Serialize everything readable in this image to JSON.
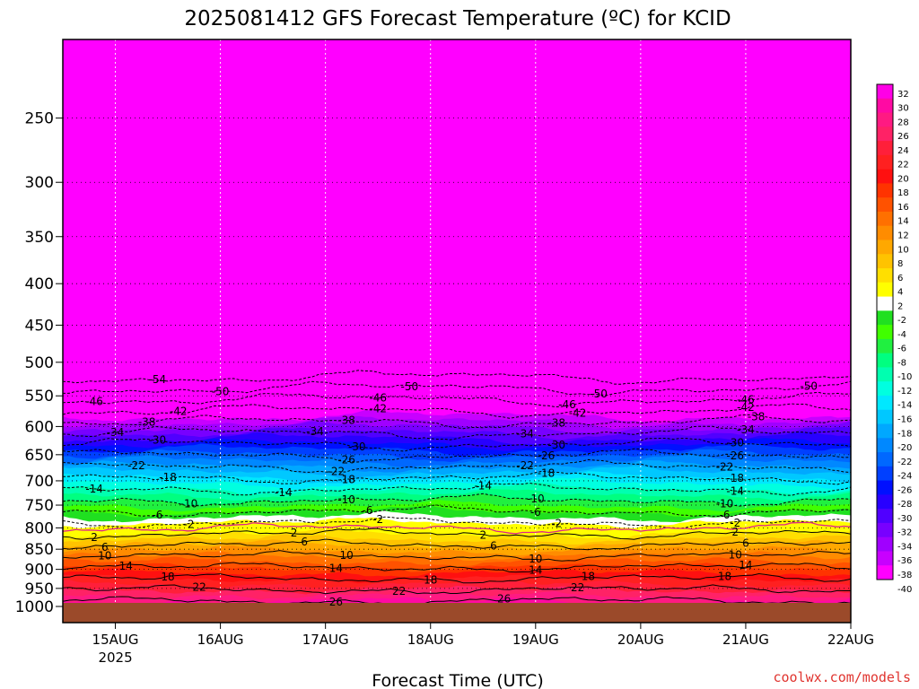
{
  "chart_data": {
    "type": "heatmap",
    "title": "2025081412 GFS Forecast Temperature (ºC) for KCID",
    "xlabel": "Forecast Time (UTC)",
    "ylabel": "",
    "x_ticks": [
      {
        "label": "15AUG",
        "sub": "2025",
        "day": 15
      },
      {
        "label": "16AUG",
        "sub": "",
        "day": 16
      },
      {
        "label": "17AUG",
        "sub": "",
        "day": 17
      },
      {
        "label": "18AUG",
        "sub": "",
        "day": 18
      },
      {
        "label": "19AUG",
        "sub": "",
        "day": 19
      },
      {
        "label": "20AUG",
        "sub": "",
        "day": 20
      },
      {
        "label": "21AUG",
        "sub": "",
        "day": 21
      },
      {
        "label": "22AUG",
        "sub": "",
        "day": 22
      }
    ],
    "xlim_days": [
      14.5,
      22.0
    ],
    "y_ticks": [
      250,
      300,
      350,
      400,
      450,
      500,
      550,
      600,
      650,
      700,
      750,
      800,
      850,
      900,
      950,
      1000
    ],
    "ylim_hpa": [
      200,
      1000
    ],
    "y_scale": "log, reversed",
    "x_grid": "dotted",
    "y_grid": "dotted",
    "ground_color": "#9b4a2a",
    "colorbar": {
      "ticks": [
        32,
        30,
        28,
        26,
        24,
        22,
        20,
        18,
        16,
        14,
        12,
        10,
        8,
        6,
        4,
        2,
        -2,
        -4,
        -6,
        -8,
        -10,
        -12,
        -14,
        -16,
        -18,
        -20,
        -22,
        -24,
        -26,
        -28,
        -30,
        -32,
        -34,
        -36,
        -38,
        -40
      ],
      "colors": [
        "#ff00e6",
        "#ff0aa3",
        "#ff1a82",
        "#ff2266",
        "#ff1f3a",
        "#ff2020",
        "#ff1010",
        "#ff3300",
        "#ff5200",
        "#ff7000",
        "#ff8c00",
        "#ffa800",
        "#ffc300",
        "#ffdf00",
        "#ffff00",
        "#ffffff",
        "#20e020",
        "#40ff00",
        "#20f040",
        "#00ff80",
        "#00ffb0",
        "#00ffe0",
        "#00e8ff",
        "#00c8ff",
        "#00a8ff",
        "#0088ff",
        "#0068ff",
        "#0040ff",
        "#0010ff",
        "#2800ff",
        "#5000ff",
        "#7800ff",
        "#a000ff",
        "#c800ff",
        "#ff00ff"
      ]
    },
    "contours": [
      {
        "value": -54,
        "labels": [
          {
            "text": "-54",
            "day": 15.4
          }
        ]
      },
      {
        "value": -50,
        "labels": [
          {
            "text": "-50",
            "day": 16.0
          },
          {
            "text": "-50",
            "day": 17.8
          },
          {
            "text": "-50",
            "day": 19.6
          },
          {
            "text": "-50",
            "day": 21.6
          }
        ]
      },
      {
        "value": -46,
        "labels": [
          {
            "text": "-46",
            "day": 14.8
          },
          {
            "text": "-46",
            "day": 17.5
          },
          {
            "text": "-46",
            "day": 19.3
          },
          {
            "text": "-46",
            "day": 21.0
          }
        ]
      },
      {
        "value": -42,
        "labels": [
          {
            "text": "-42",
            "day": 15.6
          },
          {
            "text": "-42",
            "day": 17.5
          },
          {
            "text": "-42",
            "day": 19.4
          },
          {
            "text": "-42",
            "day": 21.0
          }
        ]
      },
      {
        "value": -38,
        "labels": [
          {
            "text": "-38",
            "day": 15.3
          },
          {
            "text": "-38",
            "day": 17.2
          },
          {
            "text": "-38",
            "day": 19.2
          },
          {
            "text": "-38",
            "day": 21.1
          }
        ]
      },
      {
        "value": -34,
        "labels": [
          {
            "text": "-34",
            "day": 15.0
          },
          {
            "text": "-34",
            "day": 16.9
          },
          {
            "text": "-34",
            "day": 18.9
          },
          {
            "text": "-34",
            "day": 21.0
          }
        ]
      },
      {
        "value": -30,
        "labels": [
          {
            "text": "-30",
            "day": 15.4
          },
          {
            "text": "-30",
            "day": 17.3
          },
          {
            "text": "-30",
            "day": 19.2
          },
          {
            "text": "-30",
            "day": 20.9
          }
        ]
      },
      {
        "value": -26,
        "labels": [
          {
            "text": "-26",
            "day": 17.2
          },
          {
            "text": "-26",
            "day": 19.1
          },
          {
            "text": "-26",
            "day": 20.9
          }
        ]
      },
      {
        "value": -22,
        "labels": [
          {
            "text": "-22",
            "day": 15.2
          },
          {
            "text": "-22",
            "day": 17.1
          },
          {
            "text": "-22",
            "day": 18.9
          },
          {
            "text": "-22",
            "day": 20.8
          }
        ]
      },
      {
        "value": -18,
        "labels": [
          {
            "text": "-18",
            "day": 15.5
          },
          {
            "text": "-18",
            "day": 17.2
          },
          {
            "text": "-18",
            "day": 19.1
          },
          {
            "text": "-18",
            "day": 20.9
          }
        ]
      },
      {
        "value": -14,
        "labels": [
          {
            "text": "-14",
            "day": 14.8
          },
          {
            "text": "-14",
            "day": 16.6
          },
          {
            "text": "-14",
            "day": 18.5
          },
          {
            "text": "-14",
            "day": 20.9
          }
        ]
      },
      {
        "value": -10,
        "labels": [
          {
            "text": "-10",
            "day": 15.7
          },
          {
            "text": "-10",
            "day": 17.2
          },
          {
            "text": "-10",
            "day": 19.0
          },
          {
            "text": "-10",
            "day": 20.8
          }
        ]
      },
      {
        "value": -6,
        "labels": [
          {
            "text": "-6",
            "day": 15.4
          },
          {
            "text": "-6",
            "day": 17.4
          },
          {
            "text": "-6",
            "day": 19.0
          },
          {
            "text": "-6",
            "day": 20.8
          }
        ]
      },
      {
        "value": -2,
        "labels": [
          {
            "text": "-2",
            "day": 15.7
          },
          {
            "text": "-2",
            "day": 17.5
          },
          {
            "text": "-2",
            "day": 19.2
          },
          {
            "text": "-2",
            "day": 20.9
          }
        ]
      },
      {
        "value": 2,
        "labels": [
          {
            "text": "2",
            "day": 14.8
          },
          {
            "text": "2",
            "day": 16.7
          },
          {
            "text": "2",
            "day": 18.5
          },
          {
            "text": "2",
            "day": 20.9
          }
        ]
      },
      {
        "value": 6,
        "labels": [
          {
            "text": "6",
            "day": 14.9
          },
          {
            "text": "6",
            "day": 16.8
          },
          {
            "text": "6",
            "day": 18.6
          },
          {
            "text": "6",
            "day": 21.0
          }
        ]
      },
      {
        "value": 10,
        "labels": [
          {
            "text": "10",
            "day": 14.9
          },
          {
            "text": "10",
            "day": 17.2
          },
          {
            "text": "10",
            "day": 19.0
          },
          {
            "text": "10",
            "day": 20.9
          }
        ]
      },
      {
        "value": 14,
        "labels": [
          {
            "text": "14",
            "day": 15.1
          },
          {
            "text": "14",
            "day": 17.1
          },
          {
            "text": "14",
            "day": 19.0
          },
          {
            "text": "14",
            "day": 21.0
          }
        ]
      },
      {
        "value": 18,
        "labels": [
          {
            "text": "18",
            "day": 15.5
          },
          {
            "text": "18",
            "day": 18.0
          },
          {
            "text": "18",
            "day": 19.5
          },
          {
            "text": "18",
            "day": 20.8
          }
        ]
      },
      {
        "value": 22,
        "labels": [
          {
            "text": "22",
            "day": 15.8
          },
          {
            "text": "22",
            "day": 17.7
          },
          {
            "text": "22",
            "day": 19.4
          }
        ]
      },
      {
        "value": 26,
        "labels": [
          {
            "text": "26",
            "day": 17.1
          },
          {
            "text": "26",
            "day": 18.7
          }
        ]
      }
    ]
  },
  "credit": "coolwx.com/models"
}
